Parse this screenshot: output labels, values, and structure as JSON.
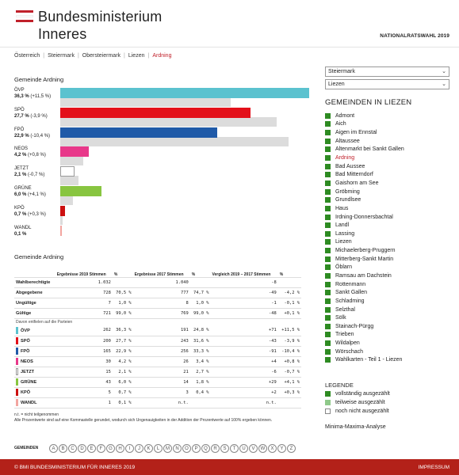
{
  "header": {
    "logo_line1": "Bundesministerium",
    "logo_line2": "Inneres",
    "election": "NATIONALRATSWAHL 2019",
    "flag_colors": [
      "#c0202a",
      "#ffffff",
      "#c0202a"
    ]
  },
  "breadcrumb": [
    "Österreich",
    "Steiermark",
    "Obersteiermark",
    "Liezen",
    "Ardning"
  ],
  "chart_data": {
    "type": "bar",
    "title": "Gemeinde Ardning",
    "series": [
      {
        "name": "ÖVP",
        "pct": "36,3 %",
        "change": "(+11,5 %)",
        "current": 36.3,
        "previous": 24.8,
        "color": "#5bc2cf"
      },
      {
        "name": "SPÖ",
        "pct": "27,7 %",
        "change": "(-3,9 %)",
        "current": 27.7,
        "previous": 31.6,
        "color": "#e3101a"
      },
      {
        "name": "FPÖ",
        "pct": "22,9 %",
        "change": "(-10,4 %)",
        "current": 22.9,
        "previous": 33.3,
        "color": "#1f5aa8"
      },
      {
        "name": "NEOS",
        "pct": "4,2 %",
        "change": "(+0,8 %)",
        "current": 4.2,
        "previous": 3.4,
        "color": "#e8388a"
      },
      {
        "name": "JETZT",
        "pct": "2,1 %",
        "change": "(-0,7 %)",
        "current": 2.1,
        "previous": 2.7,
        "color": "#ffffff"
      },
      {
        "name": "GRÜNE",
        "pct": "6,0 %",
        "change": "(+4,1 %)",
        "current": 6.0,
        "previous": 1.8,
        "color": "#88c540"
      },
      {
        "name": "KPÖ",
        "pct": "0,7 %",
        "change": "(+0,3 %)",
        "current": 0.7,
        "previous": 0.4,
        "color": "#cc1010"
      },
      {
        "name": "WANDL",
        "pct": "0,1 %",
        "change": "",
        "current": 0.1,
        "previous": 0,
        "color": "#f2a5a0"
      }
    ],
    "xlim": [
      0,
      36.3
    ]
  },
  "table": {
    "title": "Gemeinde Ardning",
    "headers": [
      "",
      "Ergebnisse 2019 Stimmen",
      "%",
      "Ergebnisse 2017 Stimmen",
      "%",
      "Vergleich 2019 – 2017 Stimmen",
      "%"
    ],
    "summary_rows": [
      [
        "Wahlberechtigte",
        "1.032",
        "",
        "1.040",
        "",
        "-8",
        ""
      ],
      [
        "Abgegebene",
        "728",
        "70,5 %",
        "777",
        "74,7 %",
        "-49",
        "-4,2 %"
      ],
      [
        "Ungültige",
        "7",
        "1,0 %",
        "8",
        "1,0 %",
        "-1",
        "-0,1 %"
      ],
      [
        "Gültige",
        "721",
        "99,0 %",
        "769",
        "99,0 %",
        "-48",
        "+0,1 %"
      ]
    ],
    "note": "Davon entfielen auf die Parteien",
    "party_rows": [
      [
        "ÖVP",
        "262",
        "36,3 %",
        "191",
        "24,8 %",
        "+71",
        "+11,5 %"
      ],
      [
        "SPÖ",
        "200",
        "27,7 %",
        "243",
        "31,6 %",
        "-43",
        "-3,9 %"
      ],
      [
        "FPÖ",
        "165",
        "22,9 %",
        "256",
        "33,3 %",
        "-91",
        "-10,4 %"
      ],
      [
        "NEOS",
        "30",
        "4,2 %",
        "26",
        "3,4 %",
        "+4",
        "+0,8 %"
      ],
      [
        "JETZT",
        "15",
        "2,1 %",
        "21",
        "2,7 %",
        "-6",
        "-0,7 %"
      ],
      [
        "GRÜNE",
        "43",
        "6,0 %",
        "14",
        "1,8 %",
        "+29",
        "+4,1 %"
      ],
      [
        "KPÖ",
        "5",
        "0,7 %",
        "3",
        "0,4 %",
        "+2",
        "+0,3 %"
      ],
      [
        "WANDL",
        "1",
        "0,1 %",
        "n.t.",
        "",
        "n.t.",
        ""
      ]
    ],
    "footnote1": "n.t. = nicht teilgenommen",
    "footnote2": "Alle Prozentwerte sind auf eine Kommastelle gerundet, wodurch sich Ungenauigkeiten in der Addition der Prozentwerte auf 100% ergeben können."
  },
  "alphabet_label": "GEMEINDEN",
  "alphabet": [
    "A",
    "B",
    "C",
    "D",
    "E",
    "F",
    "G",
    "H",
    "I",
    "J",
    "K",
    "L",
    "M",
    "N",
    "O",
    "P",
    "Q",
    "R",
    "S",
    "T",
    "U",
    "V",
    "W",
    "X",
    "Y",
    "Z"
  ],
  "sidebar": {
    "select_state": "Steiermark",
    "select_district": "Liezen",
    "title": "GEMEINDEN IN LIEZEN",
    "municipalities": [
      "Admont",
      "Aich",
      "Aigen im Ennstal",
      "Altaussee",
      "Altenmarkt bei Sankt Gallen",
      "Ardning",
      "Bad Aussee",
      "Bad Mitterndorf",
      "Gaishorn am See",
      "Gröbming",
      "Grundlsee",
      "Haus",
      "Irdning-Donnersbachtal",
      "Landl",
      "Lassing",
      "Liezen",
      "Michaelerberg-Pruggern",
      "Mitterberg-Sankt Martin",
      "Öblarn",
      "Ramsau am Dachstein",
      "Rottenmann",
      "Sankt Gallen",
      "Schladming",
      "Selzthal",
      "Sölk",
      "Stainach-Pürgg",
      "Trieben",
      "Wildalpen",
      "Wörschach",
      "Wahlkarten - Teil 1 - Liezen"
    ],
    "active": "Ardning",
    "legend_title": "LEGENDE",
    "legend": [
      {
        "label": "vollständig ausgezählt",
        "color": "#2e8b22"
      },
      {
        "label": "teilweise ausgezählt",
        "color": "#8fc98a"
      },
      {
        "label": "noch nicht ausgezählt",
        "color": "#ffffff"
      }
    ],
    "minmax": "Minima-Maxima-Analyse"
  },
  "footer": {
    "copyright": "© BMI BUNDESMINISTERIUM FÜR INNERES 2019",
    "impressum": "IMPRESSUM"
  }
}
